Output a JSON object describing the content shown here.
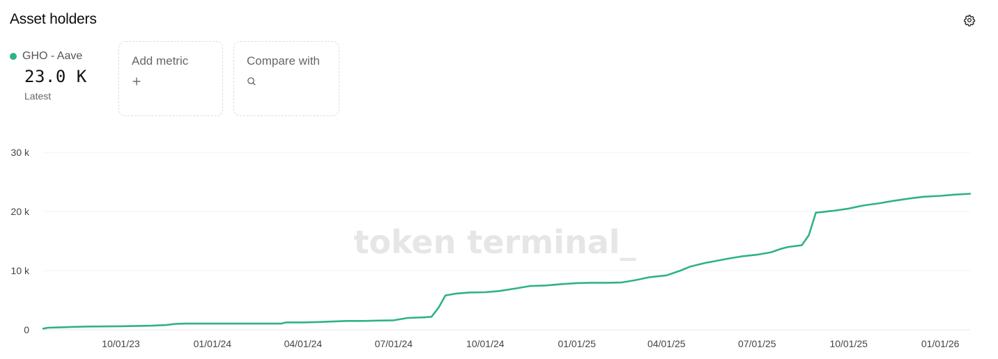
{
  "header": {
    "title": "Asset holders",
    "settings_icon": "gear-icon"
  },
  "metric": {
    "name": "GHO - Aave",
    "value": "23.0 K",
    "sublabel": "Latest",
    "color": "#2fb380"
  },
  "add_metric": {
    "label": "Add metric",
    "icon": "plus-icon"
  },
  "compare_with": {
    "label": "Compare with",
    "icon": "search-icon"
  },
  "watermark": "token terminal_",
  "chart_data": {
    "type": "line",
    "title": "Asset holders",
    "ylim": [
      0,
      30000
    ],
    "yticks": [
      0,
      10000,
      20000,
      30000
    ],
    "ytick_labels": [
      "0",
      "10 k",
      "20 k",
      "30 k"
    ],
    "xlim": [
      "2023-07-15",
      "2026-01-31"
    ],
    "xticks": [
      "2023-10-01",
      "2024-01-01",
      "2024-04-01",
      "2024-07-01",
      "2024-10-01",
      "2025-01-01",
      "2025-04-01",
      "2025-07-01",
      "2025-10-01",
      "2026-01-01"
    ],
    "xtick_labels": [
      "10/01/23",
      "01/01/24",
      "04/01/24",
      "07/01/24",
      "10/01/24",
      "01/01/25",
      "04/01/25",
      "07/01/25",
      "10/01/25",
      "01/01/26"
    ],
    "grid": "horizontal",
    "series": [
      {
        "name": "GHO - Aave",
        "color": "#2fb380",
        "points": [
          [
            "2023-07-15",
            200
          ],
          [
            "2023-07-20",
            350
          ],
          [
            "2023-08-01",
            400
          ],
          [
            "2023-08-15",
            500
          ],
          [
            "2023-09-01",
            550
          ],
          [
            "2023-10-01",
            600
          ],
          [
            "2023-11-01",
            700
          ],
          [
            "2023-11-15",
            800
          ],
          [
            "2023-11-25",
            1000
          ],
          [
            "2023-12-05",
            1050
          ],
          [
            "2024-01-01",
            1050
          ],
          [
            "2024-02-01",
            1050
          ],
          [
            "2024-03-01",
            1050
          ],
          [
            "2024-03-10",
            1050
          ],
          [
            "2024-03-15",
            1250
          ],
          [
            "2024-04-01",
            1250
          ],
          [
            "2024-04-15",
            1300
          ],
          [
            "2024-05-01",
            1400
          ],
          [
            "2024-05-15",
            1500
          ],
          [
            "2024-06-01",
            1500
          ],
          [
            "2024-06-15",
            1550
          ],
          [
            "2024-07-01",
            1600
          ],
          [
            "2024-07-15",
            2000
          ],
          [
            "2024-08-01",
            2100
          ],
          [
            "2024-08-08",
            2200
          ],
          [
            "2024-08-15",
            3700
          ],
          [
            "2024-08-22",
            5800
          ],
          [
            "2024-09-01",
            6100
          ],
          [
            "2024-09-15",
            6300
          ],
          [
            "2024-10-01",
            6350
          ],
          [
            "2024-10-15",
            6550
          ],
          [
            "2024-11-01",
            7000
          ],
          [
            "2024-11-15",
            7400
          ],
          [
            "2024-12-01",
            7500
          ],
          [
            "2024-12-15",
            7700
          ],
          [
            "2025-01-01",
            7900
          ],
          [
            "2025-01-15",
            7950
          ],
          [
            "2025-02-01",
            7950
          ],
          [
            "2025-02-15",
            8000
          ],
          [
            "2025-03-01",
            8400
          ],
          [
            "2025-03-15",
            8900
          ],
          [
            "2025-04-01",
            9200
          ],
          [
            "2025-04-15",
            10000
          ],
          [
            "2025-04-25",
            10700
          ],
          [
            "2025-05-10",
            11300
          ],
          [
            "2025-06-01",
            12000
          ],
          [
            "2025-06-15",
            12400
          ],
          [
            "2025-07-01",
            12700
          ],
          [
            "2025-07-15",
            13100
          ],
          [
            "2025-07-25",
            13700
          ],
          [
            "2025-08-01",
            14000
          ],
          [
            "2025-08-15",
            14300
          ],
          [
            "2025-08-22",
            16000
          ],
          [
            "2025-08-29",
            19800
          ],
          [
            "2025-09-15",
            20100
          ],
          [
            "2025-10-01",
            20500
          ],
          [
            "2025-10-15",
            21000
          ],
          [
            "2025-11-01",
            21400
          ],
          [
            "2025-11-15",
            21800
          ],
          [
            "2025-12-01",
            22200
          ],
          [
            "2025-12-15",
            22500
          ],
          [
            "2026-01-01",
            22650
          ],
          [
            "2026-01-15",
            22850
          ],
          [
            "2026-01-31",
            23000
          ]
        ]
      }
    ]
  }
}
